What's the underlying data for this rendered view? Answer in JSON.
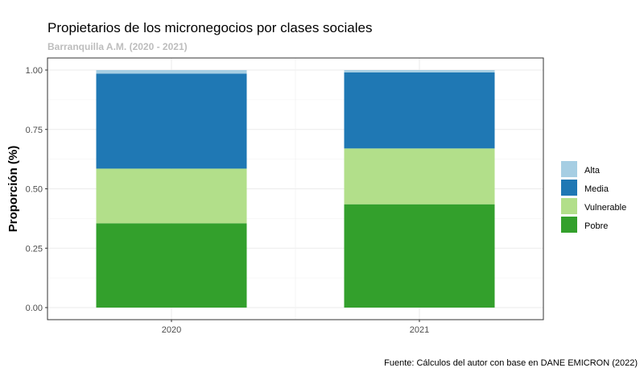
{
  "chart_data": {
    "type": "bar",
    "stacked": true,
    "title": "Propietarios de los micronegocios por clases sociales",
    "subtitle": "Barranquilla A.M. (2020 - 2021)",
    "xlabel": "",
    "ylabel": "Proporción (%)",
    "caption": "Fuente: Cálculos del autor con base en DANE EMICRON (2022)",
    "categories": [
      "2020",
      "2021"
    ],
    "ylim": [
      0,
      1
    ],
    "yticks": [
      "0.00",
      "0.25",
      "0.50",
      "0.75",
      "1.00"
    ],
    "grid": true,
    "legend_position": "right",
    "series": [
      {
        "name": "Pobre",
        "color": "#33a02c",
        "values": [
          0.355,
          0.435
        ]
      },
      {
        "name": "Vulnerable",
        "color": "#b2df8a",
        "values": [
          0.23,
          0.235
        ]
      },
      {
        "name": "Media",
        "color": "#1f78b4",
        "values": [
          0.4,
          0.32
        ]
      },
      {
        "name": "Alta",
        "color": "#a6cee3",
        "values": [
          0.015,
          0.01
        ]
      }
    ],
    "legend_order": [
      "Alta",
      "Media",
      "Vulnerable",
      "Pobre"
    ]
  }
}
